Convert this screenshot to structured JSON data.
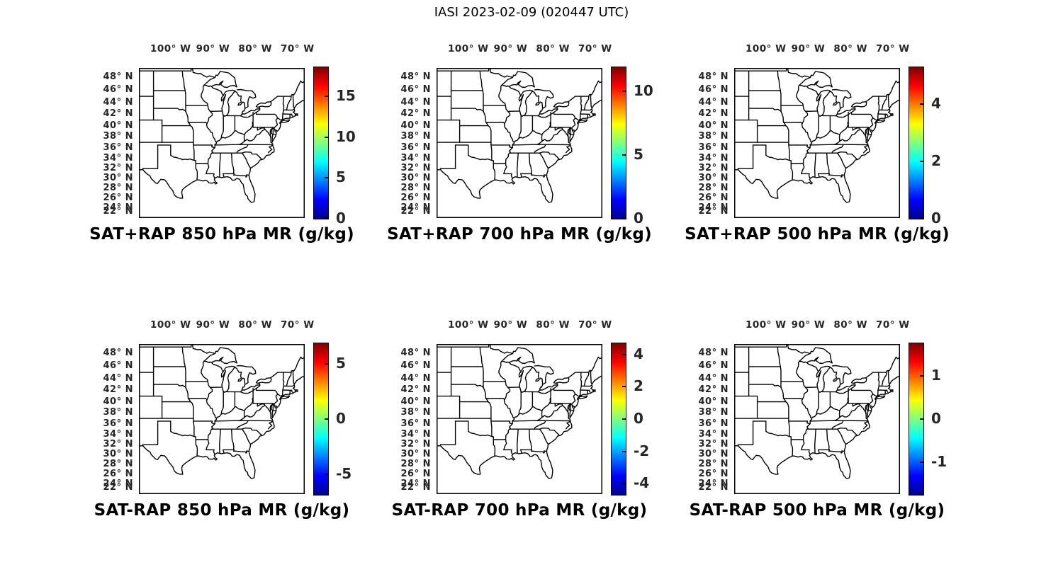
{
  "figure_title": "IASI 2023-02-09 (020447 UTC)",
  "axes": {
    "lon_ticks": [
      {
        "deg": 100,
        "hem": "W",
        "label": "100° W"
      },
      {
        "deg": 90,
        "hem": "W",
        "label": "90° W"
      },
      {
        "deg": 80,
        "hem": "W",
        "label": "80° W"
      },
      {
        "deg": 70,
        "hem": "W",
        "label": "70° W"
      }
    ],
    "lat_ticks": [
      {
        "deg": 48,
        "hem": "N",
        "label": "48° N"
      },
      {
        "deg": 46,
        "hem": "N",
        "label": "46° N"
      },
      {
        "deg": 44,
        "hem": "N",
        "label": "44° N"
      },
      {
        "deg": 42,
        "hem": "N",
        "label": "42° N"
      },
      {
        "deg": 40,
        "hem": "N",
        "label": "40° N"
      },
      {
        "deg": 38,
        "hem": "N",
        "label": "38° N"
      },
      {
        "deg": 36,
        "hem": "N",
        "label": "36° N"
      },
      {
        "deg": 34,
        "hem": "N",
        "label": "34° N"
      },
      {
        "deg": 32,
        "hem": "N",
        "label": "32° N"
      },
      {
        "deg": 30,
        "hem": "N",
        "label": "30° N"
      },
      {
        "deg": 28,
        "hem": "N",
        "label": "28° N"
      },
      {
        "deg": 26,
        "hem": "N",
        "label": "26° N"
      },
      {
        "deg": 24,
        "hem": "N",
        "label": "24° N"
      },
      {
        "deg": 22,
        "hem": "N",
        "label": "22° N"
      }
    ]
  },
  "colormap": {
    "name": "jet",
    "stops": [
      "#00008F",
      "#0000FF",
      "#00FFFF",
      "#FFFF00",
      "#FF0000",
      "#800000"
    ]
  },
  "panels": [
    {
      "id": "sat_plus_rap_850",
      "title": "SAT+RAP 850 hPa MR (g/kg)",
      "row": 0,
      "col": 0,
      "colorbar": {
        "min": 0,
        "max": 18.6,
        "ticks": [
          {
            "value": 0,
            "label": "0"
          },
          {
            "value": 5,
            "label": "5"
          },
          {
            "value": 10,
            "label": "10"
          },
          {
            "value": 15,
            "label": "15"
          }
        ]
      }
    },
    {
      "id": "sat_plus_rap_700",
      "title": "SAT+RAP 700 hPa MR (g/kg)",
      "row": 0,
      "col": 1,
      "colorbar": {
        "min": 0,
        "max": 11.9,
        "ticks": [
          {
            "value": 0,
            "label": "0"
          },
          {
            "value": 5,
            "label": "5"
          },
          {
            "value": 10,
            "label": "10"
          }
        ]
      }
    },
    {
      "id": "sat_plus_rap_500",
      "title": "SAT+RAP 500 hPa MR (g/kg)",
      "row": 0,
      "col": 2,
      "colorbar": {
        "min": 0,
        "max": 5.3,
        "ticks": [
          {
            "value": 0,
            "label": "0"
          },
          {
            "value": 2,
            "label": "2"
          },
          {
            "value": 4,
            "label": "4"
          }
        ]
      }
    },
    {
      "id": "sat_minus_rap_850",
      "title": "SAT-RAP 850 hPa MR (g/kg)",
      "row": 1,
      "col": 0,
      "colorbar": {
        "min": -6.9,
        "max": 6.9,
        "ticks": [
          {
            "value": -5,
            "label": "-5"
          },
          {
            "value": 0,
            "label": "0"
          },
          {
            "value": 5,
            "label": "5"
          }
        ]
      }
    },
    {
      "id": "sat_minus_rap_700",
      "title": "SAT-RAP 700 hPa MR (g/kg)",
      "row": 1,
      "col": 1,
      "colorbar": {
        "min": -4.7,
        "max": 4.7,
        "ticks": [
          {
            "value": -4,
            "label": "-4"
          },
          {
            "value": -2,
            "label": "-2"
          },
          {
            "value": 0,
            "label": "0"
          },
          {
            "value": 2,
            "label": "2"
          },
          {
            "value": 4,
            "label": "4"
          }
        ]
      }
    },
    {
      "id": "sat_minus_rap_500",
      "title": "SAT-RAP 500 hPa MR (g/kg)",
      "row": 1,
      "col": 2,
      "colorbar": {
        "min": -1.74,
        "max": 1.74,
        "ticks": [
          {
            "value": -1,
            "label": "-1"
          },
          {
            "value": 0,
            "label": "0"
          },
          {
            "value": 1,
            "label": "1"
          }
        ]
      }
    }
  ],
  "chart_data": [
    {
      "type": "heatmap",
      "title": "SAT+RAP 850 hPa MR (g/kg)",
      "x_ticks": [
        "100° W",
        "90° W",
        "80° W",
        "70° W"
      ],
      "y_ticks": [
        "48° N",
        "46° N",
        "44° N",
        "42° N",
        "40° N",
        "38° N",
        "36° N",
        "34° N",
        "32° N",
        "30° N",
        "28° N",
        "26° N",
        "24° N",
        "22° N"
      ],
      "colorbar": {
        "colormap": "jet",
        "range": [
          0,
          18.6
        ],
        "ticks": [
          0,
          5,
          10,
          15
        ],
        "units": "g/kg"
      },
      "values": [],
      "note": "basemap of US state outlines only; no gridded values visible"
    },
    {
      "type": "heatmap",
      "title": "SAT+RAP 700 hPa MR (g/kg)",
      "x_ticks": [
        "100° W",
        "90° W",
        "80° W",
        "70° W"
      ],
      "y_ticks": [
        "48° N",
        "46° N",
        "44° N",
        "42° N",
        "40° N",
        "38° N",
        "36° N",
        "34° N",
        "32° N",
        "30° N",
        "28° N",
        "26° N",
        "24° N",
        "22° N"
      ],
      "colorbar": {
        "colormap": "jet",
        "range": [
          0,
          11.9
        ],
        "ticks": [
          0,
          5,
          10
        ],
        "units": "g/kg"
      },
      "values": [],
      "note": "basemap of US state outlines only; no gridded values visible"
    },
    {
      "type": "heatmap",
      "title": "SAT+RAP 500 hPa MR (g/kg)",
      "x_ticks": [
        "100° W",
        "90° W",
        "80° W",
        "70° W"
      ],
      "y_ticks": [
        "48° N",
        "46° N",
        "44° N",
        "42° N",
        "40° N",
        "38° N",
        "36° N",
        "34° N",
        "32° N",
        "30° N",
        "28° N",
        "26° N",
        "24° N",
        "22° N"
      ],
      "colorbar": {
        "colormap": "jet",
        "range": [
          0,
          5.3
        ],
        "ticks": [
          0,
          2,
          4
        ],
        "units": "g/kg"
      },
      "values": [],
      "note": "basemap of US state outlines only; no gridded values visible"
    },
    {
      "type": "heatmap",
      "title": "SAT-RAP 850 hPa MR (g/kg)",
      "x_ticks": [
        "100° W",
        "90° W",
        "80° W",
        "70° W"
      ],
      "y_ticks": [
        "48° N",
        "46° N",
        "44° N",
        "42° N",
        "40° N",
        "38° N",
        "36° N",
        "34° N",
        "32° N",
        "30° N",
        "28° N",
        "26° N",
        "24° N",
        "22° N"
      ],
      "colorbar": {
        "colormap": "jet",
        "range": [
          -6.9,
          6.9
        ],
        "ticks": [
          -5,
          0,
          5
        ],
        "units": "g/kg"
      },
      "values": [],
      "note": "basemap of US state outlines only; no gridded values visible"
    },
    {
      "type": "heatmap",
      "title": "SAT-RAP 700 hPa MR (g/kg)",
      "x_ticks": [
        "100° W",
        "90° W",
        "80° W",
        "70° W"
      ],
      "y_ticks": [
        "48° N",
        "46° N",
        "44° N",
        "42° N",
        "40° N",
        "38° N",
        "36° N",
        "34° N",
        "32° N",
        "30° N",
        "28° N",
        "26° N",
        "24° N",
        "22° N"
      ],
      "colorbar": {
        "colormap": "jet",
        "range": [
          -4.7,
          4.7
        ],
        "ticks": [
          -4,
          -2,
          0,
          2,
          4
        ],
        "units": "g/kg"
      },
      "values": [],
      "note": "basemap of US state outlines only; no gridded values visible"
    },
    {
      "type": "heatmap",
      "title": "SAT-RAP 500 hPa MR (g/kg)",
      "x_ticks": [
        "100° W",
        "90° W",
        "80° W",
        "70° W"
      ],
      "y_ticks": [
        "48° N",
        "46° N",
        "44° N",
        "42° N",
        "40° N",
        "38° N",
        "36° N",
        "34° N",
        "32° N",
        "30° N",
        "28° N",
        "26° N",
        "24° N",
        "22° N"
      ],
      "colorbar": {
        "colormap": "jet",
        "range": [
          -1.74,
          1.74
        ],
        "ticks": [
          -1,
          0,
          1
        ],
        "units": "g/kg"
      },
      "values": [],
      "note": "basemap of US state outlines only; no gridded values visible"
    }
  ]
}
